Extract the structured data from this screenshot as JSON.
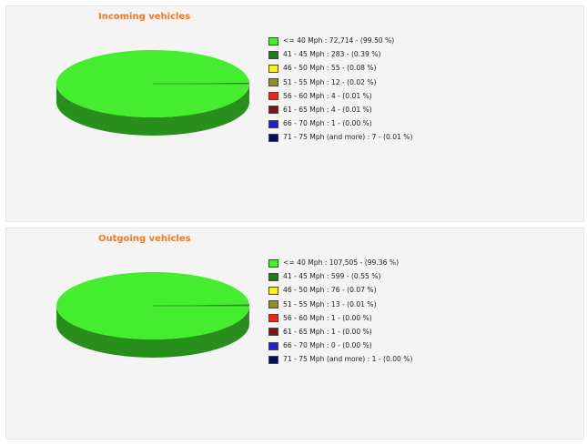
{
  "charts": [
    {
      "id": "incoming",
      "title": "Incoming vehicles",
      "legend": [
        {
          "text": "<= 40 Mph : 72,714 - (99.50 %)",
          "color": "#44ee2e"
        },
        {
          "text": "41 - 45 Mph :    283 - (0.39 %)",
          "color": "#1f7a1c"
        },
        {
          "text": "46 - 50 Mph :    55 - (0.08 %)",
          "color": "#f7ef24"
        },
        {
          "text": "51 - 55 Mph :    12 - (0.02 %)",
          "color": "#8f8f26"
        },
        {
          "text": "56 - 60 Mph :    4 - (0.01 %)",
          "color": "#e8261b"
        },
        {
          "text": "61 - 65 Mph :    4 - (0.01 %)",
          "color": "#7e1711"
        },
        {
          "text": "66 - 70 Mph :    1 - (0.00 %)",
          "color": "#1f1fd8"
        },
        {
          "text": "71 - 75 Mph (and more) :    7 - (0.01 %)",
          "color": "#0d0d55"
        }
      ]
    },
    {
      "id": "outgoing",
      "title": "Outgoing vehicles",
      "legend": [
        {
          "text": "<= 40 Mph : 107,505 - (99.36 %)",
          "color": "#44ee2e"
        },
        {
          "text": "41 - 45 Mph :    599 - (0.55 %)",
          "color": "#1f7a1c"
        },
        {
          "text": "46 - 50 Mph :    76 - (0.07 %)",
          "color": "#f7ef24"
        },
        {
          "text": "51 - 55 Mph :    13 - (0.01 %)",
          "color": "#8f8f26"
        },
        {
          "text": "56 - 60 Mph :    1 - (0.00 %)",
          "color": "#e8261b"
        },
        {
          "text": "61 - 65 Mph :    1 - (0.00 %)",
          "color": "#7e1711"
        },
        {
          "text": "66 - 70 Mph :    0 - (0.00 %)",
          "color": "#1f1fd8"
        },
        {
          "text": "71 - 75 Mph (and more) :    1 - (0.00 %)",
          "color": "#0d0d55"
        }
      ]
    }
  ],
  "chart_data": [
    {
      "type": "pie",
      "title": "Incoming vehicles",
      "categories": [
        "<= 40 Mph",
        "41 - 45 Mph",
        "46 - 50 Mph",
        "51 - 55 Mph",
        "56 - 60 Mph",
        "61 - 65 Mph",
        "66 - 70 Mph",
        "71 - 75 Mph (and more)"
      ],
      "values": [
        72714,
        283,
        55,
        12,
        4,
        4,
        1,
        7
      ],
      "percentages": [
        99.5,
        0.39,
        0.08,
        0.02,
        0.01,
        0.01,
        0.0,
        0.01
      ],
      "colors": [
        "#44ee2e",
        "#1f7a1c",
        "#f7ef24",
        "#8f8f26",
        "#e8261b",
        "#7e1711",
        "#1f1fd8",
        "#0d0d55"
      ],
      "style": "3d",
      "legend_position": "right"
    },
    {
      "type": "pie",
      "title": "Outgoing vehicles",
      "categories": [
        "<= 40 Mph",
        "41 - 45 Mph",
        "46 - 50 Mph",
        "51 - 55 Mph",
        "56 - 60 Mph",
        "61 - 65 Mph",
        "66 - 70 Mph",
        "71 - 75 Mph (and more)"
      ],
      "values": [
        107505,
        599,
        76,
        13,
        1,
        1,
        0,
        1
      ],
      "percentages": [
        99.36,
        0.55,
        0.07,
        0.01,
        0.0,
        0.0,
        0.0,
        0.0
      ],
      "colors": [
        "#44ee2e",
        "#1f7a1c",
        "#f7ef24",
        "#8f8f26",
        "#e8261b",
        "#7e1711",
        "#1f1fd8",
        "#0d0d55"
      ],
      "style": "3d",
      "legend_position": "right"
    }
  ]
}
